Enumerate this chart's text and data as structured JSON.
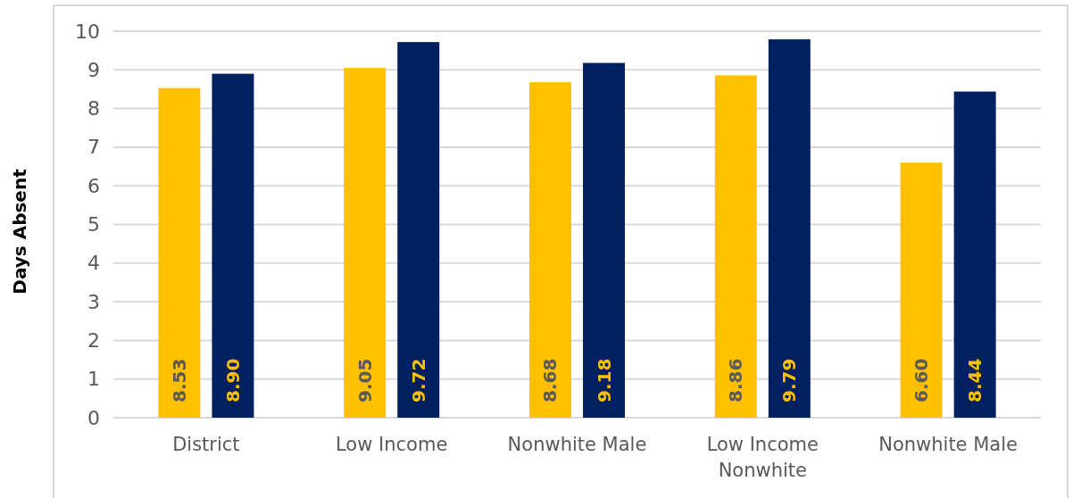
{
  "chart_data": {
    "type": "bar",
    "ylabel": "Days Absent",
    "categories": [
      "District",
      "Low Income",
      "Nonwhite Male",
      "Low Income Nonwhite",
      "Nonwhite Male"
    ],
    "series": [
      {
        "color": "#ffc000",
        "values": [
          8.53,
          9.05,
          8.68,
          8.86,
          6.6
        ],
        "value_labels": [
          "8.53",
          "9.05",
          "8.68",
          "8.86",
          "6.60"
        ]
      },
      {
        "color": "#002060",
        "values": [
          8.9,
          9.72,
          9.18,
          9.79,
          8.44
        ],
        "value_labels": [
          "8.90",
          "9.72",
          "9.18",
          "9.79",
          "8.44"
        ]
      }
    ],
    "ylim": [
      0,
      10
    ],
    "yticks": [
      0,
      1,
      2,
      3,
      4,
      5,
      6,
      7,
      8,
      9,
      10
    ],
    "grid": "y"
  }
}
